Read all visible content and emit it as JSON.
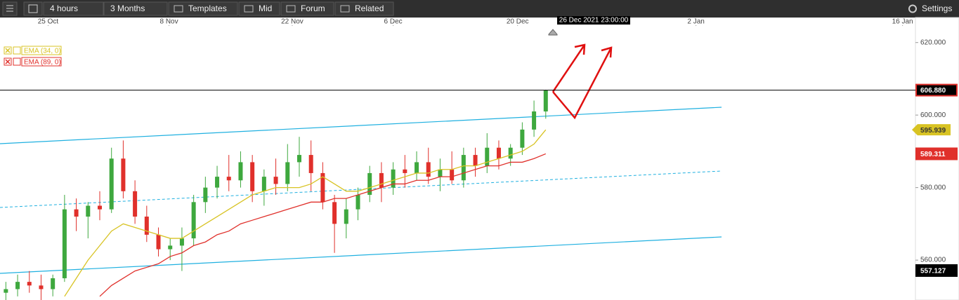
{
  "toolbar": {
    "items": [
      "4 hours",
      "3 Months",
      "Templates",
      "Mid",
      "Forum",
      "Related"
    ],
    "settings": "Settings"
  },
  "chart_data": {
    "type": "candlestick",
    "crosshair_label": "26 Dec 2021 23:00:00",
    "xlim": [
      -0.5,
      77.5
    ],
    "xticks": [
      {
        "value": 3.6,
        "label": "25 Oct"
      },
      {
        "value": 13.9,
        "label": "8 Nov"
      },
      {
        "value": 24.4,
        "label": "22 Nov"
      },
      {
        "value": 33.0,
        "label": "6 Dec"
      },
      {
        "value": 43.6,
        "label": "20 Dec"
      },
      {
        "value": 58.8,
        "label": "2 Jan"
      },
      {
        "value": 76.4,
        "label": "16 Jan"
      }
    ],
    "ylim": [
      549,
      626.9
    ],
    "yticks": [
      {
        "value": 620,
        "label": "620.000"
      },
      {
        "value": 600,
        "label": "600.000"
      },
      {
        "value": 580,
        "label": "580.000"
      },
      {
        "value": 560,
        "label": "560.000"
      }
    ],
    "up_color": "#3ea83e",
    "down_color": "#e0302b",
    "open": [
      551,
      552,
      554,
      553,
      552,
      555,
      574,
      572,
      575,
      574,
      588,
      579,
      572,
      567,
      563,
      564,
      566,
      576,
      580,
      583,
      582,
      587,
      579,
      583,
      581,
      587,
      589,
      584,
      576,
      570,
      574,
      578,
      584,
      580,
      585,
      584,
      587,
      583,
      585,
      582,
      589,
      586,
      591,
      588,
      591,
      596,
      601
    ],
    "high": [
      554,
      556,
      557,
      556,
      556,
      578,
      577,
      576,
      579,
      591,
      593,
      582,
      575,
      569,
      566,
      569,
      578,
      583,
      586,
      589,
      590,
      589,
      585,
      588,
      592,
      594,
      593,
      587,
      578,
      577,
      580,
      586,
      587,
      587,
      589,
      590,
      591,
      588,
      590,
      591,
      591,
      595,
      593,
      592,
      598,
      604,
      607
    ],
    "low": [
      549,
      550,
      551,
      549,
      550,
      554,
      568,
      566,
      571,
      573,
      577,
      570,
      565,
      561,
      560,
      557,
      564,
      573,
      577,
      579,
      580,
      576,
      575,
      578,
      579,
      583,
      579,
      574,
      562,
      566,
      571,
      576,
      576,
      578,
      580,
      582,
      581,
      579,
      581,
      580,
      583,
      584,
      585,
      586,
      589,
      594,
      599
    ],
    "close": [
      552,
      554,
      553,
      552,
      555,
      574,
      572,
      575,
      574,
      588,
      579,
      572,
      567,
      563,
      564,
      566,
      576,
      580,
      583,
      582,
      587,
      579,
      583,
      581,
      587,
      589,
      584,
      576,
      570,
      574,
      578,
      584,
      580,
      585,
      584,
      587,
      583,
      585,
      582,
      589,
      586,
      591,
      588,
      591,
      596,
      601,
      606.88
    ],
    "series": [
      {
        "name": "EMA (34, 0)",
        "color": "#d8c323",
        "values": [
          null,
          null,
          null,
          null,
          null,
          550,
          555,
          560,
          564,
          568,
          570,
          569,
          568,
          567,
          566,
          566,
          568,
          570,
          572,
          574,
          576,
          578,
          579,
          580,
          580,
          580,
          581,
          583,
          581,
          579,
          579,
          580,
          581,
          582,
          583,
          584,
          584,
          585,
          585,
          586,
          586,
          587,
          588,
          589,
          590,
          592,
          595.939
        ]
      },
      {
        "name": "EMA (89, 0)",
        "color": "#e0302b",
        "values": [
          null,
          null,
          null,
          null,
          null,
          null,
          null,
          null,
          550,
          553,
          555,
          557,
          558,
          559,
          561,
          562,
          564,
          565,
          567,
          568,
          570,
          571,
          572,
          573,
          574,
          575,
          576,
          576,
          577,
          577,
          578,
          579,
          580,
          581,
          581,
          582,
          582,
          583,
          583,
          584,
          585,
          586,
          586,
          587,
          587,
          588,
          589.311
        ]
      }
    ],
    "price_labels": [
      {
        "value": 606.88,
        "label": "606.880",
        "color": "#000000",
        "text_color": "#ffffff",
        "border": "#e0302b"
      },
      {
        "value": 595.939,
        "label": "595.939",
        "color": "#d8c323",
        "text_color": "#333333",
        "border": "#d8c323"
      },
      {
        "value": 589.311,
        "label": "589.311",
        "color": "#e0302b",
        "text_color": "#ffffff",
        "border": "#e0302b"
      },
      {
        "value": 557.127,
        "label": "557.127",
        "color": "#000000",
        "text_color": "#ffffff",
        "border": "#000000"
      }
    ]
  }
}
